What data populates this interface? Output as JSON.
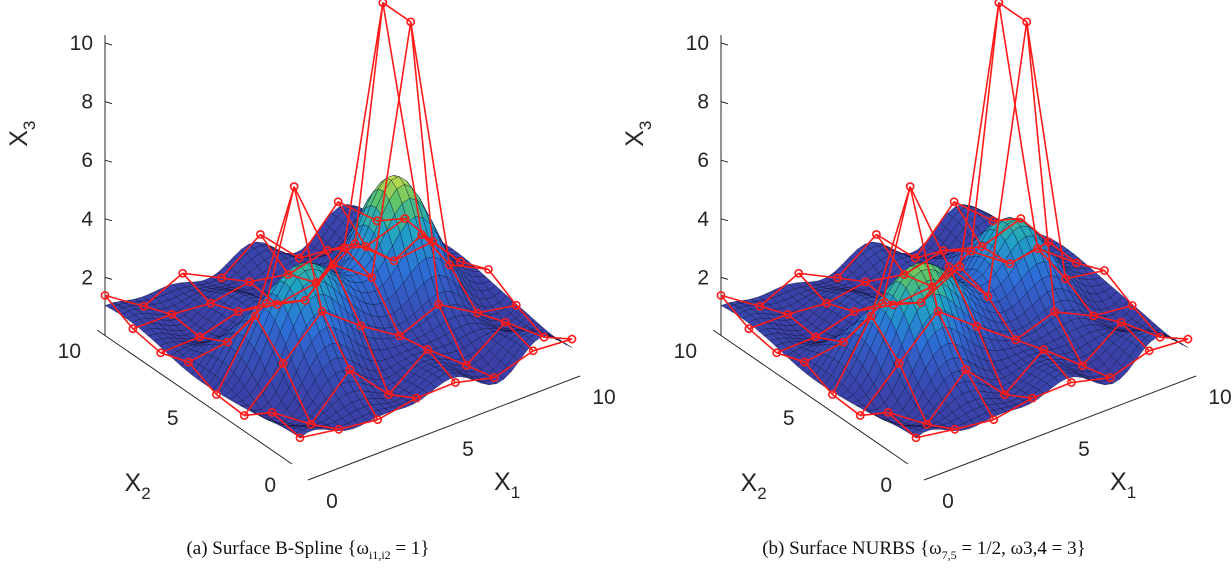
{
  "chart_data": [
    {
      "type": "surface",
      "caption_label": "(a)",
      "caption_text": "Surface B-Spline {ω",
      "caption_sub": "i1,i2",
      "caption_tail": " = 1}",
      "xlabel": "X",
      "xlabel_sub": "1",
      "ylabel": "X",
      "ylabel_sub": "2",
      "zlabel": "X",
      "zlabel_sub": "3",
      "x_ticks": [
        "0",
        "5",
        "10"
      ],
      "y_ticks": [
        "0",
        "5",
        "10"
      ],
      "z_ticks": [
        "2",
        "4",
        "6",
        "8",
        "10"
      ],
      "xlim": [
        0,
        10
      ],
      "ylim": [
        0,
        10
      ],
      "zlim": [
        0,
        10
      ],
      "colormap": [
        "#3b3fa6",
        "#2d6fd8",
        "#1fa5c4",
        "#5bc46a",
        "#e4e142"
      ],
      "control_net_color": "#ff1a1a",
      "peaks": [
        {
          "x": 7,
          "y": 5,
          "height": 5.3
        },
        {
          "x": 3,
          "y": 4,
          "height": 4.6
        }
      ],
      "control_spikes": [
        {
          "x": 7,
          "y": 5,
          "z": 10.8
        },
        {
          "x": 3,
          "y": 4,
          "z": 6.7
        }
      ]
    },
    {
      "type": "surface",
      "caption_label": "(b)",
      "caption_text": "Surface NURBS {ω",
      "caption_sub": "7,5",
      "caption_tail": " = 1/2, ω3,4 = 3}",
      "xlabel": "X",
      "xlabel_sub": "1",
      "ylabel": "X",
      "ylabel_sub": "2",
      "zlabel": "X",
      "zlabel_sub": "3",
      "x_ticks": [
        "0",
        "5",
        "10"
      ],
      "y_ticks": [
        "0",
        "5",
        "10"
      ],
      "z_ticks": [
        "2",
        "4",
        "6",
        "8",
        "10"
      ],
      "xlim": [
        0,
        10
      ],
      "ylim": [
        0,
        10
      ],
      "zlim": [
        0,
        10
      ],
      "colormap": [
        "#3b3fa6",
        "#2d6fd8",
        "#1fa5c4",
        "#5bc46a",
        "#e4e142"
      ],
      "control_net_color": "#ff1a1a",
      "peaks": [
        {
          "x": 7,
          "y": 5,
          "height": 3.8
        },
        {
          "x": 3,
          "y": 4,
          "height": 4.6
        }
      ],
      "control_spikes": [
        {
          "x": 7,
          "y": 5,
          "z": 10.8
        },
        {
          "x": 3,
          "y": 4,
          "z": 6.7
        }
      ]
    }
  ]
}
